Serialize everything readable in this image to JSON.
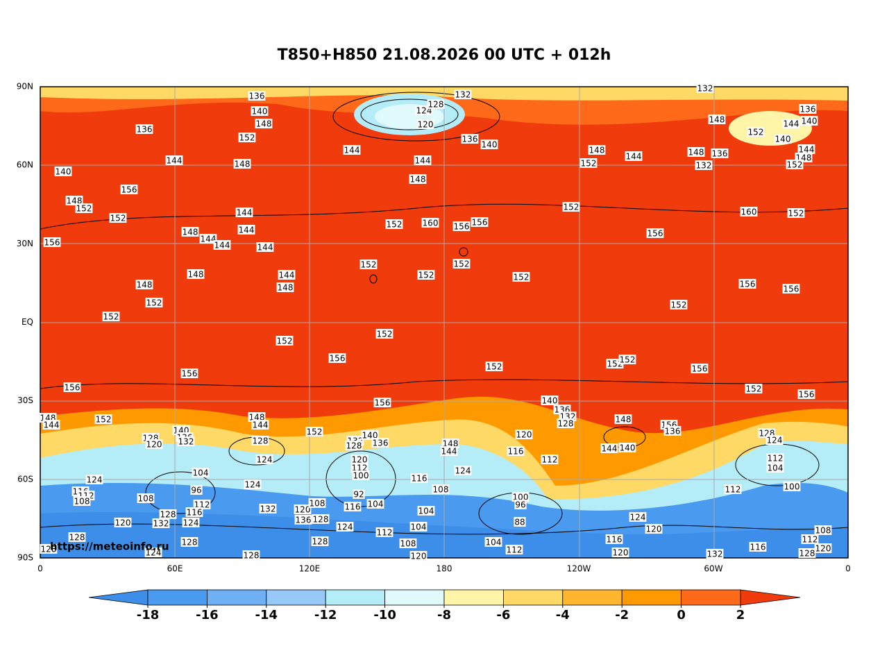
{
  "title": "T850+H850 21.08.2026 00 UTC + 012h",
  "watermark": "https://meteoinfo.ru",
  "lat_labels": [
    "90N",
    "60N",
    "30N",
    "EQ",
    "30S",
    "60S",
    "90S"
  ],
  "lon_labels": [
    "0",
    "60E",
    "120E",
    "180",
    "120W",
    "60W",
    "0"
  ],
  "colorbar": {
    "ticks": [
      -18,
      -16,
      -14,
      -12,
      -10,
      -8,
      -6,
      -4,
      -2,
      0,
      2
    ],
    "colors": [
      "#3c8ee8",
      "#4a9af0",
      "#6fb0f5",
      "#96c8f8",
      "#b4ecf8",
      "#e0fafc",
      "#fff5a8",
      "#ffd966",
      "#ffb52e",
      "#ff9900",
      "#ff6a1a",
      "#f03c0c"
    ]
  },
  "contour_labels": [
    136,
    132,
    132,
    124,
    128,
    120,
    140,
    148,
    136,
    152,
    144,
    136,
    140,
    148,
    152,
    144,
    136,
    140,
    140,
    148,
    144,
    152,
    148,
    136,
    132,
    144,
    148,
    152,
    144,
    148,
    144,
    148,
    140,
    156,
    148,
    152,
    152,
    144,
    144,
    144,
    148,
    144,
    144,
    156,
    152,
    160,
    156,
    156,
    152,
    160,
    152,
    156,
    152,
    152,
    152,
    152,
    148,
    148,
    144,
    148,
    152,
    156,
    156,
    152,
    152,
    152,
    152,
    156,
    152,
    152,
    152,
    156,
    156,
    156,
    156,
    152,
    156,
    140,
    136,
    132,
    128,
    148,
    148,
    144,
    152,
    148,
    144,
    140,
    136,
    132,
    128,
    120,
    152,
    128,
    124,
    132,
    128,
    140,
    136,
    120,
    116,
    148,
    144,
    112,
    144,
    140,
    156,
    136,
    128,
    124,
    112,
    104,
    100,
    112,
    120,
    112,
    100,
    92,
    124,
    116,
    108,
    104,
    96,
    124,
    124,
    116,
    112,
    108,
    108,
    112,
    116,
    132,
    120,
    108,
    136,
    128,
    116,
    104,
    104,
    128,
    132,
    124,
    120,
    100,
    96,
    88,
    124,
    120,
    124,
    112,
    104,
    108,
    104,
    112,
    116,
    128,
    128,
    128,
    120,
    128,
    124,
    120,
    132,
    116,
    112,
    108,
    120,
    128,
    128
  ]
}
